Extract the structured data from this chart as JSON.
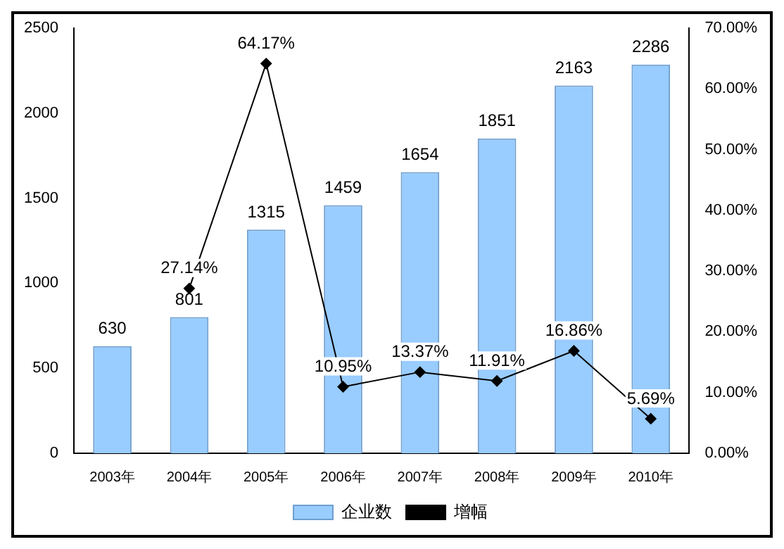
{
  "chart_data": {
    "type": "bar",
    "categories": [
      "2003年",
      "2004年",
      "2005年",
      "2006年",
      "2007年",
      "2008年",
      "2009年",
      "2010年"
    ],
    "series": [
      {
        "name": "企业数",
        "color": "#99ccff",
        "values": [
          630,
          801,
          1315,
          1459,
          1654,
          1851,
          2163,
          2286
        ],
        "value_labels": [
          "630",
          "801",
          "1315",
          "1459",
          "1654",
          "1851",
          "2163",
          "2286"
        ]
      },
      {
        "name": "增幅",
        "type": "line",
        "axis": "y2",
        "color": "#000000",
        "marker": "diamond",
        "values": [
          null,
          27.14,
          64.17,
          10.95,
          13.37,
          11.91,
          16.86,
          5.69
        ],
        "value_labels": [
          null,
          "27.14%",
          "64.17%",
          "10.95%",
          "13.37%",
          "11.91%",
          "16.86%",
          "5.69%"
        ]
      }
    ],
    "ylim": [
      0,
      2500
    ],
    "yticks": [
      0,
      500,
      1000,
      1500,
      2000,
      2500
    ],
    "y2lim": [
      0,
      70
    ],
    "y2ticks": [
      {
        "value": 0,
        "label": "0.00%"
      },
      {
        "value": 10,
        "label": "10.00%"
      },
      {
        "value": 20,
        "label": "20.00%"
      },
      {
        "value": 30,
        "label": "30.00%"
      },
      {
        "value": 40,
        "label": "40.00%"
      },
      {
        "value": 50,
        "label": "50.00%"
      },
      {
        "value": 60,
        "label": "60.00%"
      },
      {
        "value": 70,
        "label": "70.00%"
      }
    ],
    "legend": "bottom"
  }
}
